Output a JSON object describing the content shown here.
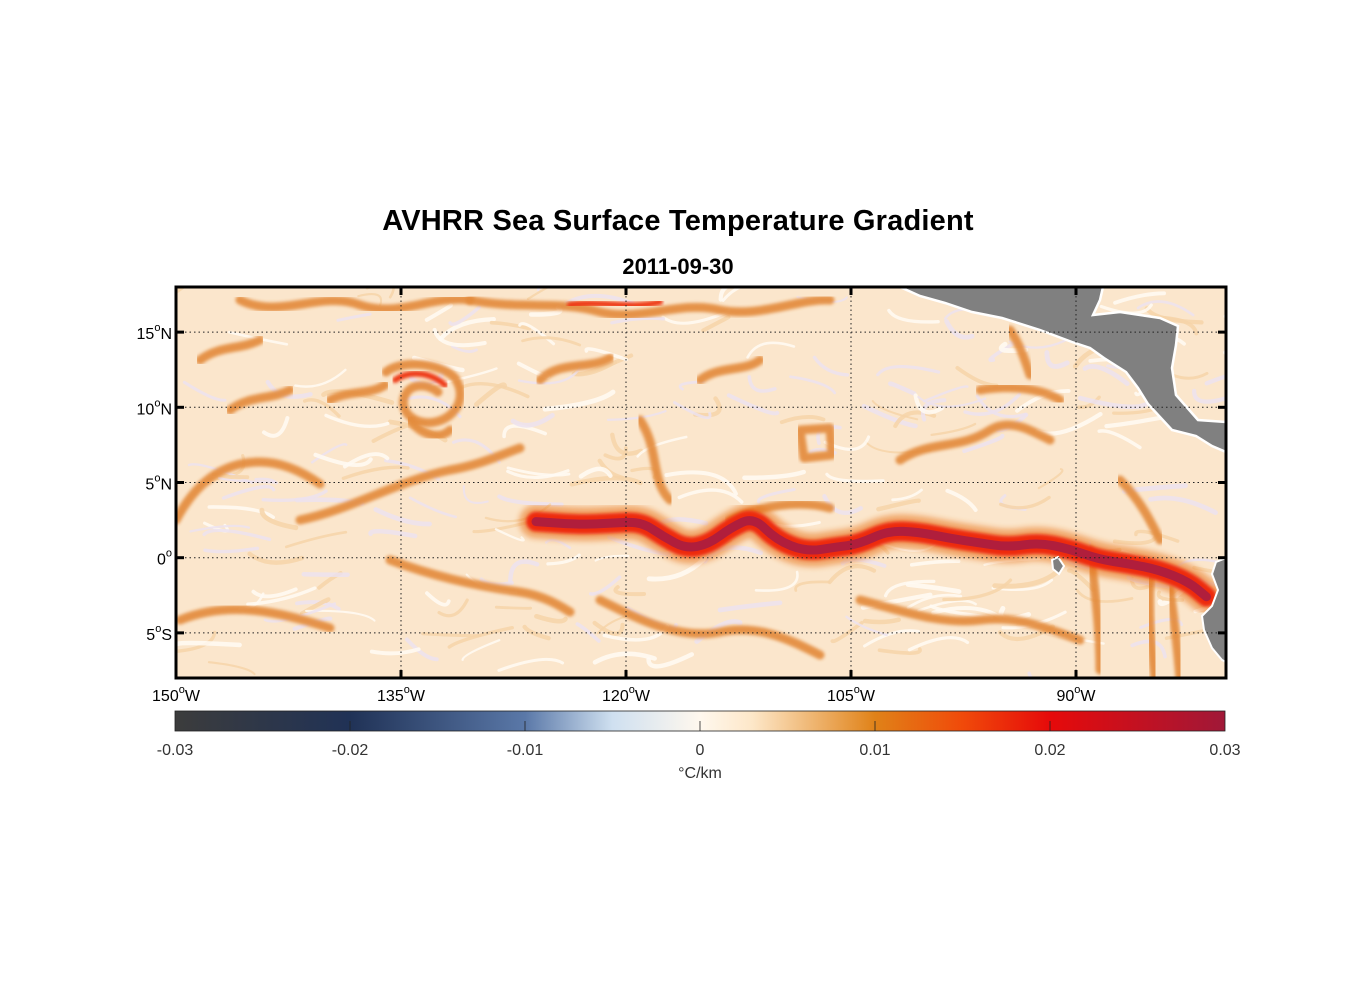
{
  "title": "AVHRR Sea Surface Temperature Gradient",
  "date": "2011-09-30",
  "map": {
    "lon_range": [
      -150,
      -80
    ],
    "lat_range": [
      -8,
      18
    ],
    "lon_ticks": [
      {
        "value": -150,
        "deg": "150",
        "hemi": "W"
      },
      {
        "value": -135,
        "deg": "135",
        "hemi": "W"
      },
      {
        "value": -120,
        "deg": "120",
        "hemi": "W"
      },
      {
        "value": -105,
        "deg": "105",
        "hemi": "W"
      },
      {
        "value": -90,
        "deg": "90",
        "hemi": "W"
      }
    ],
    "lat_ticks": [
      {
        "value": 15,
        "deg": "15",
        "hemi": "N"
      },
      {
        "value": 10,
        "deg": "10",
        "hemi": "N"
      },
      {
        "value": 5,
        "deg": "5",
        "hemi": "N"
      },
      {
        "value": 0,
        "deg": "0",
        "hemi": ""
      },
      {
        "value": -5,
        "deg": "5",
        "hemi": "S"
      }
    ],
    "grid": "dotted",
    "ocean_background": "#fbe6cc",
    "land_color": "#808080",
    "equatorial_front": [
      [
        -126,
        2.4
      ],
      [
        -123,
        2.2
      ],
      [
        -121,
        2.3
      ],
      [
        -119,
        2.4
      ],
      [
        -117.5,
        1.4
      ],
      [
        -116,
        0.6
      ],
      [
        -114.5,
        0.9
      ],
      [
        -113,
        2.0
      ],
      [
        -111.5,
        2.7
      ],
      [
        -110,
        1.2
      ],
      [
        -108,
        0.4
      ],
      [
        -106,
        0.7
      ],
      [
        -104.5,
        0.9
      ],
      [
        -102.5,
        1.8
      ],
      [
        -100.5,
        1.7
      ],
      [
        -98.5,
        1.3
      ],
      [
        -96.5,
        1.0
      ],
      [
        -94.5,
        0.7
      ],
      [
        -92.5,
        1.0
      ],
      [
        -90.5,
        0.6
      ],
      [
        -88.5,
        -0.1
      ],
      [
        -86.5,
        -0.4
      ],
      [
        -84.5,
        -0.8
      ],
      [
        -82.5,
        -1.6
      ],
      [
        -81.3,
        -2.6
      ]
    ]
  },
  "colorbar": {
    "ticks": [
      "-0.03",
      "-0.02",
      "-0.01",
      "0",
      "0.01",
      "0.02",
      "0.03"
    ],
    "unit": "°C/km",
    "stops": [
      {
        "value": -0.03,
        "color": "#3c3c3c"
      },
      {
        "value": -0.02,
        "color": "#203256"
      },
      {
        "value": -0.01,
        "color": "#5a78a8"
      },
      {
        "value": -0.005,
        "color": "#cfe0f0"
      },
      {
        "value": 0.0,
        "color": "#fff8ee"
      },
      {
        "value": 0.003,
        "color": "#fde7c8"
      },
      {
        "value": 0.01,
        "color": "#e08218"
      },
      {
        "value": 0.015,
        "color": "#f04a0a"
      },
      {
        "value": 0.02,
        "color": "#e60a0a"
      },
      {
        "value": 0.03,
        "color": "#a01838"
      }
    ]
  }
}
